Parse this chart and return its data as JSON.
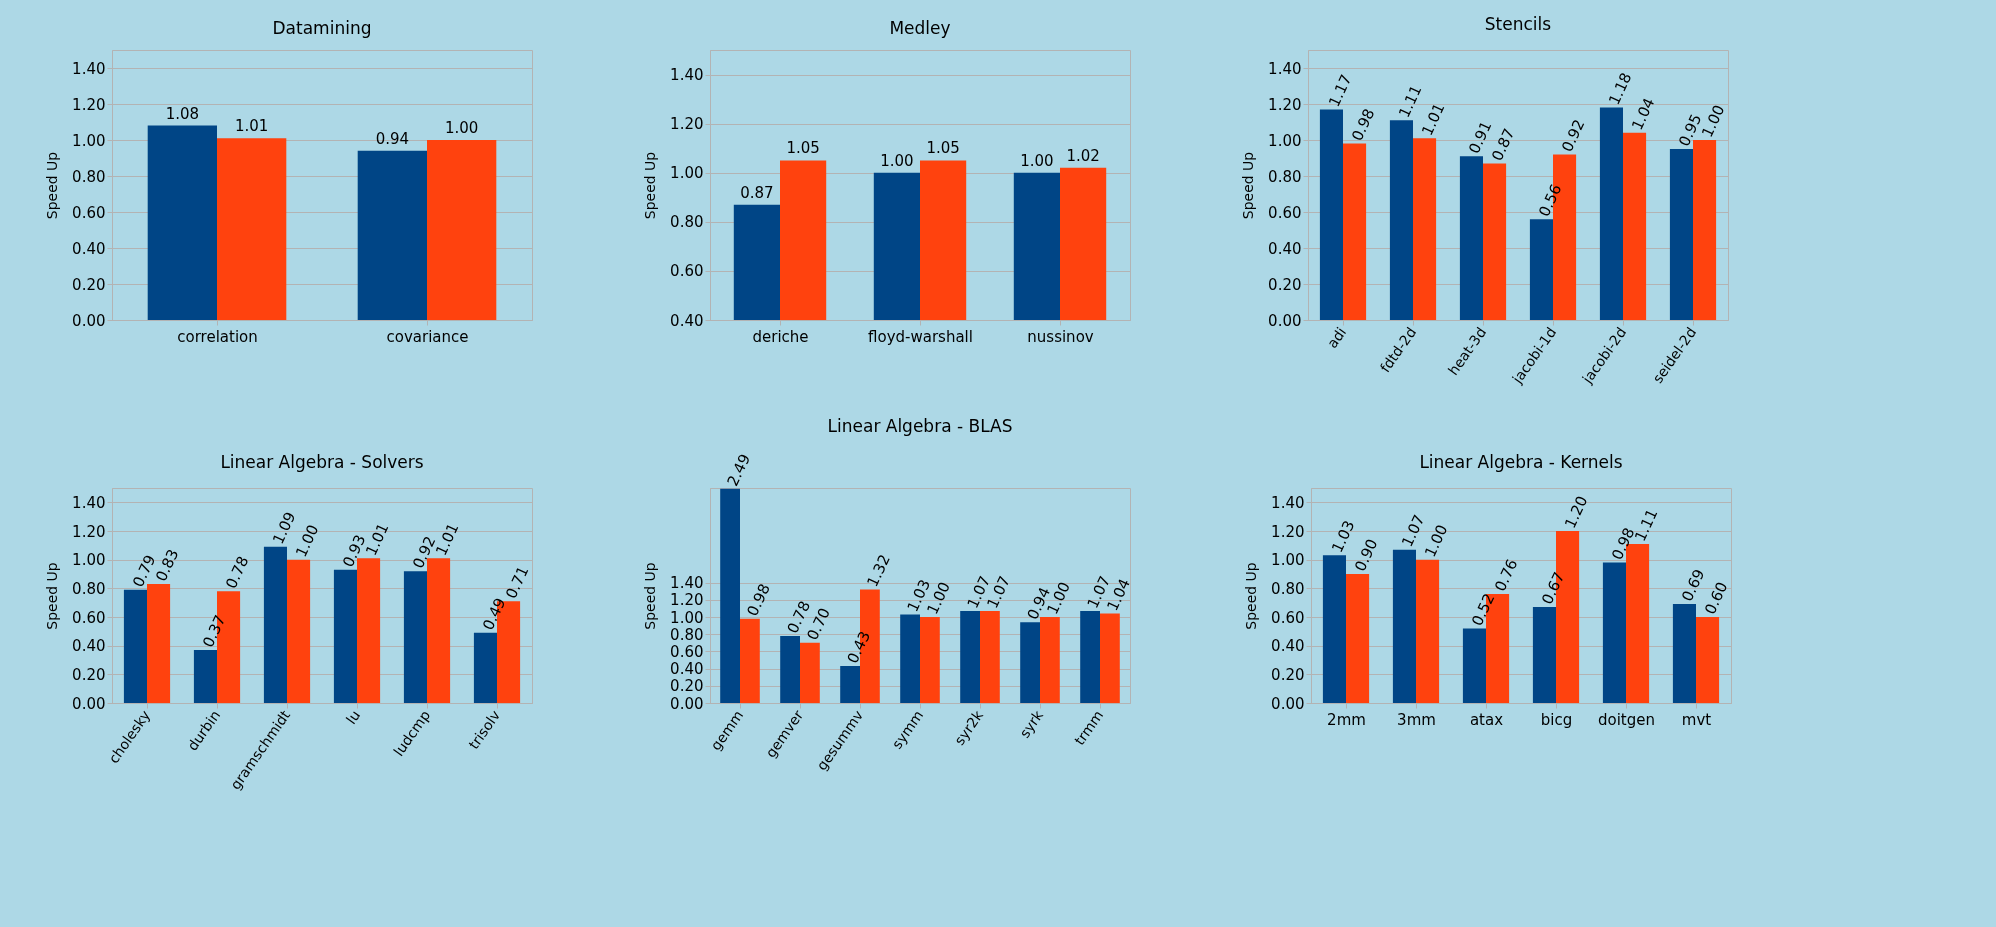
{
  "chart_data": [
    {
      "type": "bar",
      "title": "Datamining",
      "ylabel": "Speed Up",
      "categories": [
        "correlation",
        "covariance"
      ],
      "series": [
        {
          "color": "#004586",
          "values": [
            1.08,
            0.94
          ],
          "value_labels": [
            "1.08",
            "0.94"
          ]
        },
        {
          "color": "#ff420e",
          "values": [
            1.01,
            1.0
          ],
          "value_labels": [
            "1.01",
            "1.00"
          ]
        }
      ],
      "ylim": [
        0,
        1.5
      ],
      "yticks": [
        {
          "value": 0,
          "label": "0.00"
        },
        {
          "value": 0.2,
          "label": "0.20"
        },
        {
          "value": 0.4,
          "label": "0.40"
        },
        {
          "value": 0.6,
          "label": "0.60"
        },
        {
          "value": 0.8,
          "label": "0.80"
        },
        {
          "value": 1,
          "label": "1.00"
        },
        {
          "value": 1.2,
          "label": "1.20"
        },
        {
          "value": 1.4,
          "label": "1.40"
        }
      ],
      "grid": "y"
    },
    {
      "type": "bar",
      "title": "Medley",
      "ylabel": "Speed Up",
      "categories": [
        "deriche",
        "floyd-warshall",
        "nussinov"
      ],
      "series": [
        {
          "color": "#004586",
          "values": [
            0.87,
            1.0,
            1.0
          ],
          "value_labels": [
            "0.87",
            "1.00",
            "1.00"
          ]
        },
        {
          "color": "#ff420e",
          "values": [
            1.05,
            1.05,
            1.02
          ],
          "value_labels": [
            "1.05",
            "1.05",
            "1.02"
          ]
        }
      ],
      "ylim": [
        0.4,
        1.5
      ],
      "yticks": [
        {
          "value": 0.4,
          "label": "0.40"
        },
        {
          "value": 0.6,
          "label": "0.60"
        },
        {
          "value": 0.8,
          "label": "0.80"
        },
        {
          "value": 1,
          "label": "1.00"
        },
        {
          "value": 1.2,
          "label": "1.20"
        },
        {
          "value": 1.4,
          "label": "1.40"
        }
      ],
      "grid": "y"
    },
    {
      "type": "bar",
      "title": "Stencils",
      "ylabel": "Speed Up",
      "categories": [
        "adi",
        "fdtd-2d",
        "heat-3d",
        "jacobi-1d",
        "jacobi-2d",
        "seidel-2d"
      ],
      "series": [
        {
          "color": "#004586",
          "values": [
            1.17,
            1.11,
            0.91,
            0.56,
            1.18,
            0.95
          ],
          "value_labels": [
            "1.17",
            "1.11",
            "0.91",
            "0.56",
            "1.18",
            "0.95"
          ]
        },
        {
          "color": "#ff420e",
          "values": [
            0.98,
            1.01,
            0.87,
            0.92,
            1.04,
            1.0
          ],
          "value_labels": [
            "0.98",
            "1.01",
            "0.87",
            "0.92",
            "1.04",
            "1.00"
          ]
        }
      ],
      "ylim": [
        0,
        1.5
      ],
      "yticks": [
        {
          "value": 0,
          "label": "0.00"
        },
        {
          "value": 0.2,
          "label": "0.20"
        },
        {
          "value": 0.4,
          "label": "0.40"
        },
        {
          "value": 0.6,
          "label": "0.60"
        },
        {
          "value": 0.8,
          "label": "0.80"
        },
        {
          "value": 1,
          "label": "1.00"
        },
        {
          "value": 1.2,
          "label": "1.20"
        },
        {
          "value": 1.4,
          "label": "1.40"
        }
      ],
      "grid": "y"
    },
    {
      "type": "bar",
      "title": "Linear Algebra - Solvers",
      "ylabel": "Speed Up",
      "categories": [
        "cholesky",
        "durbin",
        "gramschmidt",
        "lu",
        "ludcmp",
        "trisolv"
      ],
      "series": [
        {
          "color": "#004586",
          "values": [
            0.79,
            0.37,
            1.09,
            0.93,
            0.92,
            0.49
          ],
          "value_labels": [
            "0.79",
            "0.37",
            "1.09",
            "0.93",
            "0.92",
            "0.49"
          ]
        },
        {
          "color": "#ff420e",
          "values": [
            0.83,
            0.78,
            1.0,
            1.01,
            1.01,
            0.71
          ],
          "value_labels": [
            "0.83",
            "0.78",
            "1.00",
            "1.01",
            "1.01",
            "0.71"
          ]
        }
      ],
      "ylim": [
        0,
        1.5
      ],
      "yticks": [
        {
          "value": 0,
          "label": "0.00"
        },
        {
          "value": 0.2,
          "label": "0.20"
        },
        {
          "value": 0.4,
          "label": "0.40"
        },
        {
          "value": 0.6,
          "label": "0.60"
        },
        {
          "value": 0.8,
          "label": "0.80"
        },
        {
          "value": 1,
          "label": "1.00"
        },
        {
          "value": 1.2,
          "label": "1.20"
        },
        {
          "value": 1.4,
          "label": "1.40"
        }
      ],
      "grid": "y"
    },
    {
      "type": "bar",
      "title": "Linear Algebra - BLAS",
      "ylabel": "Speed Up",
      "categories": [
        "gemm",
        "gemver",
        "gesummv",
        "symm",
        "syr2k",
        "syrk",
        "trmm"
      ],
      "series": [
        {
          "color": "#004586",
          "values": [
            2.49,
            0.78,
            0.43,
            1.03,
            1.07,
            0.94,
            1.07
          ],
          "value_labels": [
            "2.49",
            "0.78",
            "0.43",
            "1.03",
            "1.07",
            "0.94",
            "1.07"
          ]
        },
        {
          "color": "#ff420e",
          "values": [
            0.98,
            0.7,
            1.32,
            1.0,
            1.07,
            1.0,
            1.04
          ],
          "value_labels": [
            "0.98",
            "0.70",
            "1.32",
            "1.00",
            "1.07",
            "1.00",
            "1.04"
          ]
        }
      ],
      "ylim": [
        0,
        2.5
      ],
      "yticks": [
        {
          "value": 0,
          "label": "0.00"
        },
        {
          "value": 0.2,
          "label": "0.20"
        },
        {
          "value": 0.4,
          "label": "0.40"
        },
        {
          "value": 0.6,
          "label": "0.60"
        },
        {
          "value": 0.8,
          "label": "0.80"
        },
        {
          "value": 1,
          "label": "1.00"
        },
        {
          "value": 1.2,
          "label": "1.20"
        },
        {
          "value": 1.4,
          "label": "1.40"
        }
      ],
      "grid": "y"
    },
    {
      "type": "bar",
      "title": "Linear Algebra - Kernels",
      "ylabel": "Speed Up",
      "categories": [
        "2mm",
        "3mm",
        "atax",
        "bicg",
        "doitgen",
        "mvt"
      ],
      "series": [
        {
          "color": "#004586",
          "values": [
            1.03,
            1.07,
            0.52,
            0.67,
            0.98,
            0.69
          ],
          "value_labels": [
            "1.03",
            "1.07",
            "0.52",
            "0.67",
            "0.98",
            "0.69"
          ]
        },
        {
          "color": "#ff420e",
          "values": [
            0.9,
            1.0,
            0.76,
            1.2,
            1.11,
            0.6
          ],
          "value_labels": [
            "0.90",
            "1.00",
            "0.76",
            "1.20",
            "1.11",
            "0.60"
          ]
        }
      ],
      "ylim": [
        0,
        1.5
      ],
      "yticks": [
        {
          "value": 0,
          "label": "0.00"
        },
        {
          "value": 0.2,
          "label": "0.20"
        },
        {
          "value": 0.4,
          "label": "0.40"
        },
        {
          "value": 0.6,
          "label": "0.60"
        },
        {
          "value": 0.8,
          "label": "0.80"
        },
        {
          "value": 1,
          "label": "1.00"
        },
        {
          "value": 1.2,
          "label": "1.20"
        },
        {
          "value": 1.4,
          "label": "1.40"
        }
      ],
      "grid": "y"
    }
  ]
}
